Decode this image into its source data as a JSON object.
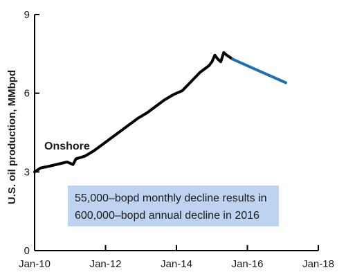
{
  "chart_data": {
    "type": "line",
    "ylabel": "U.S. oil production, MMbpd",
    "ylim": [
      0,
      9
    ],
    "yticks": [
      "0",
      "3",
      "6",
      "9"
    ],
    "xticks": [
      "Jan-10",
      "Jan-12",
      "Jan-14",
      "Jan-16",
      "Jan-18"
    ],
    "xlim": [
      "2010-01",
      "2018-01"
    ],
    "grid": false,
    "series": [
      {
        "name": "Onshore",
        "color": "#000000",
        "x": [
          "2010-01",
          "2010-03",
          "2010-06",
          "2010-09",
          "2010-12",
          "2011-01",
          "2011-02",
          "2011-03",
          "2011-06",
          "2011-09",
          "2011-12",
          "2012-03",
          "2012-06",
          "2012-09",
          "2012-12",
          "2013-03",
          "2013-06",
          "2013-09",
          "2013-12",
          "2014-03",
          "2014-06",
          "2014-09",
          "2014-12",
          "2015-01",
          "2015-02",
          "2015-03",
          "2015-04",
          "2015-05",
          "2015-06",
          "2015-08"
        ],
        "values": [
          3.0,
          3.15,
          3.22,
          3.3,
          3.38,
          3.33,
          3.28,
          3.5,
          3.6,
          3.8,
          4.05,
          4.3,
          4.55,
          4.8,
          5.05,
          5.25,
          5.5,
          5.75,
          5.95,
          6.1,
          6.45,
          6.8,
          7.05,
          7.2,
          7.45,
          7.3,
          7.2,
          7.55,
          7.45,
          7.3
        ]
      },
      {
        "name": "",
        "color": "#1f6fb2",
        "x": [
          "2015-08",
          "2017-02"
        ],
        "values": [
          7.3,
          6.4
        ]
      }
    ],
    "annotations": [
      "55,000–bopd monthly decline results in",
      "600,000–bopd annual decline in 2016"
    ]
  }
}
